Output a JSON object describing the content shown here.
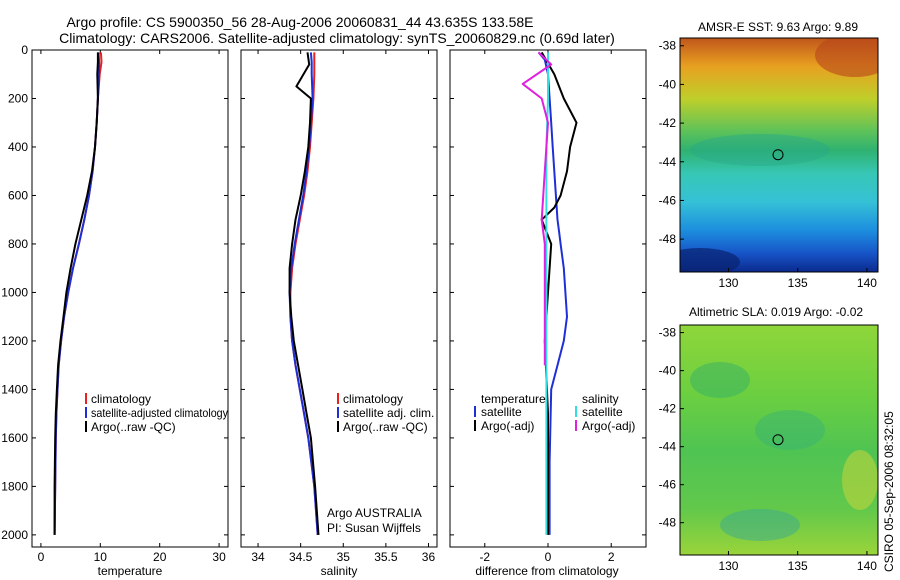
{
  "title_line1": "Argo profile: CS 5900350_56 28-Aug-2006 20060831_44 43.635S 133.58E",
  "title_line2": "Climatology: CARS2006. Satellite-adjusted climatology: synTS_20060829.nc (0.69d later)",
  "footer_stamp": "CSIRO 05-Sep-2006 08:32:05",
  "colors": {
    "climatology": "#e8201e",
    "satellite": "#1f2fd8",
    "argo": "#000000",
    "satellite_cyan": "#33dde0",
    "argo_adj": "#e020e0"
  },
  "chart_data": [
    {
      "type": "line",
      "xlabel": "temperature",
      "xlim": [
        -1.5,
        31.5
      ],
      "ylim": [
        2050,
        0
      ],
      "xticks": [
        "0",
        "10",
        "20",
        "30"
      ],
      "yticks": [
        "0",
        "200",
        "400",
        "600",
        "800",
        "1000",
        "1200",
        "1400",
        "1600",
        "1800",
        "2000"
      ],
      "legend": [
        "climatology",
        "satellite-adjusted climatology",
        "Argo(..raw -QC)"
      ],
      "series": [
        {
          "name": "climatology",
          "color_key": "climatology",
          "x": [
            10.1,
            10.2,
            9.9,
            9.6,
            9.4,
            9.1,
            8.7,
            8.1,
            7.3,
            6.4,
            5.4,
            4.6,
            3.9,
            3.4,
            3.0,
            2.8,
            2.6,
            2.5,
            2.4,
            2.3
          ],
          "y": [
            10,
            50,
            100,
            200,
            300,
            400,
            500,
            600,
            700,
            800,
            900,
            1000,
            1100,
            1200,
            1300,
            1400,
            1500,
            1600,
            1800,
            2000
          ]
        },
        {
          "name": "satellite-adjusted climatology",
          "color_key": "satellite",
          "x": [
            9.7,
            9.8,
            9.8,
            9.6,
            9.4,
            9.1,
            8.7,
            8.1,
            7.3,
            6.4,
            5.4,
            4.6,
            3.9,
            3.4,
            3.0,
            2.8,
            2.6,
            2.5,
            2.4,
            2.3
          ],
          "y": [
            10,
            50,
            100,
            200,
            300,
            400,
            500,
            600,
            700,
            800,
            900,
            1000,
            1100,
            1200,
            1300,
            1400,
            1500,
            1600,
            1800,
            2000
          ]
        },
        {
          "name": "Argo(..raw -QC)",
          "color_key": "argo",
          "x": [
            9.6,
            9.6,
            9.5,
            9.6,
            9.4,
            9.1,
            8.6,
            7.8,
            6.8,
            5.8,
            5.0,
            4.3,
            3.8,
            3.3,
            2.9,
            2.7,
            2.5,
            2.4,
            2.3,
            2.3
          ],
          "y": [
            10,
            50,
            100,
            200,
            300,
            400,
            500,
            600,
            700,
            800,
            900,
            1000,
            1100,
            1200,
            1300,
            1400,
            1500,
            1600,
            1800,
            2000
          ]
        }
      ]
    },
    {
      "type": "line",
      "xlabel": "salinity",
      "xlim": [
        33.8,
        36.1
      ],
      "ylim": [
        2050,
        0
      ],
      "xticks": [
        "34",
        "34.5",
        "35",
        "35.5",
        "36"
      ],
      "legend": [
        "climatology",
        "satellite adj. clim.",
        "Argo(..raw -QC)"
      ],
      "annotations": [
        "Argo AUSTRALIA",
        "PI: Susan Wijffels"
      ],
      "series": [
        {
          "name": "climatology",
          "color_key": "climatology",
          "x": [
            34.66,
            34.66,
            34.66,
            34.65,
            34.63,
            34.61,
            34.58,
            34.54,
            34.49,
            34.44,
            34.4,
            34.38,
            34.38,
            34.4,
            34.44,
            34.49,
            34.54,
            34.59,
            34.66,
            34.7
          ],
          "y": [
            10,
            50,
            100,
            200,
            300,
            400,
            500,
            600,
            700,
            800,
            900,
            1000,
            1100,
            1200,
            1300,
            1400,
            1500,
            1600,
            1800,
            2000
          ]
        },
        {
          "name": "satellite adj. clim.",
          "color_key": "satellite",
          "x": [
            34.62,
            34.63,
            34.63,
            34.64,
            34.62,
            34.6,
            34.57,
            34.53,
            34.48,
            34.43,
            34.39,
            34.37,
            34.38,
            34.4,
            34.44,
            34.49,
            34.54,
            34.59,
            34.66,
            34.7
          ],
          "y": [
            10,
            50,
            100,
            200,
            300,
            400,
            500,
            600,
            700,
            800,
            900,
            1000,
            1100,
            1200,
            1300,
            1400,
            1500,
            1600,
            1800,
            2000
          ]
        },
        {
          "name": "Argo(..raw -QC)",
          "color_key": "argo",
          "x": [
            34.58,
            34.6,
            34.45,
            34.62,
            34.61,
            34.59,
            34.55,
            34.5,
            34.44,
            34.4,
            34.37,
            34.37,
            34.39,
            34.42,
            34.47,
            34.52,
            34.57,
            34.62,
            34.67,
            34.71
          ],
          "y": [
            10,
            60,
            150,
            200,
            300,
            400,
            500,
            600,
            700,
            800,
            900,
            1000,
            1100,
            1200,
            1300,
            1400,
            1500,
            1600,
            1800,
            2000
          ]
        }
      ]
    },
    {
      "type": "line",
      "xlabel": "difference from climatology",
      "xlim": [
        -3.1,
        3.1
      ],
      "ylim": [
        2050,
        0
      ],
      "xticks": [
        "-2",
        "0",
        "2"
      ],
      "legend_headers": [
        "temperature",
        "salinity"
      ],
      "legend_left": [
        "satellite",
        "Argo(-adj)"
      ],
      "legend_right": [
        "satellite",
        "Argo(-adj)"
      ],
      "series": [
        {
          "name": "temperature satellite",
          "color_key": "satellite",
          "x": [
            -0.3,
            -0.1,
            0.0,
            0.05,
            0.1,
            0.15,
            0.2,
            0.25,
            0.3,
            0.35,
            0.4,
            0.45,
            0.5,
            0.55,
            0.6,
            0.5,
            0.3,
            0.1,
            0.05,
            0.05
          ],
          "y": [
            10,
            40,
            100,
            200,
            300,
            400,
            500,
            600,
            700,
            750,
            800,
            850,
            900,
            1000,
            1100,
            1200,
            1300,
            1400,
            1700,
            2000
          ]
        },
        {
          "name": "temperature Argo(-adj)",
          "color_key": "argo",
          "x": [
            -0.2,
            0.2,
            0.5,
            0.9,
            0.7,
            0.6,
            0.4,
            0.2,
            -0.2,
            0.1,
            0.0,
            -0.1,
            0.0,
            0.0
          ],
          "y": [
            10,
            100,
            200,
            300,
            400,
            500,
            600,
            650,
            700,
            800,
            1000,
            1200,
            1500,
            2000
          ]
        },
        {
          "name": "salinity satellite",
          "color_key": "satellite_cyan",
          "x": [
            0.0,
            0.0,
            -0.05,
            -0.05,
            -0.05,
            -0.05,
            -0.05,
            -0.05,
            -0.05
          ],
          "y": [
            10,
            200,
            400,
            800,
            1000,
            1200,
            1500,
            1800,
            2000
          ]
        },
        {
          "name": "salinity Argo(-adj)",
          "color_key": "argo_adj",
          "x": [
            -0.3,
            0.1,
            -0.8,
            -0.2,
            0.0,
            -0.1,
            -0.2,
            -0.1,
            -0.1,
            -0.1
          ],
          "y": [
            10,
            60,
            140,
            200,
            300,
            500,
            700,
            800,
            1000,
            1300
          ]
        }
      ]
    },
    {
      "type": "heatmap",
      "title": "AMSR-E SST: 9.63 Argo: 9.89",
      "xticks": [
        "130",
        "135",
        "140"
      ],
      "yticks": [
        "-38",
        "-40",
        "-42",
        "-44",
        "-46",
        "-48"
      ],
      "xlim": [
        126.5,
        140.8
      ],
      "ylim": [
        -49.7,
        -37.6
      ],
      "marker": {
        "x": 133.58,
        "y": -43.635
      }
    },
    {
      "type": "heatmap",
      "title": "Altimetric SLA: 0.019 Argo: -0.02",
      "xticks": [
        "130",
        "135",
        "140"
      ],
      "yticks": [
        "-38",
        "-40",
        "-42",
        "-44",
        "-46",
        "-48"
      ],
      "xlim": [
        126.5,
        140.8
      ],
      "ylim": [
        -49.7,
        -37.6
      ],
      "marker": {
        "x": 133.58,
        "y": -43.635
      }
    }
  ]
}
